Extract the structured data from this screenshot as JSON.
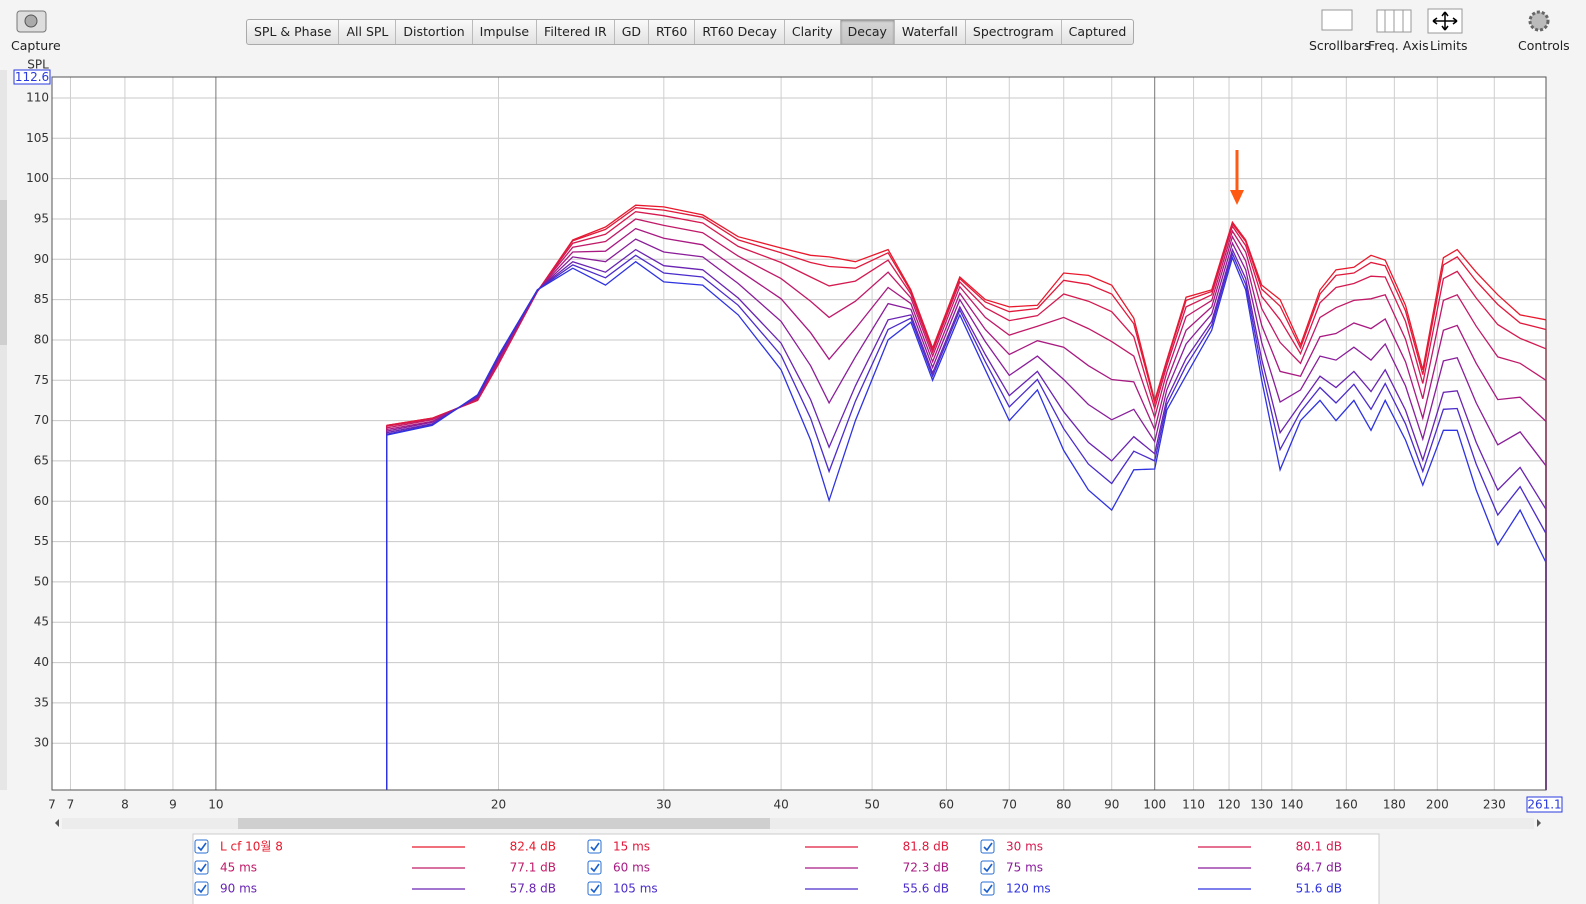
{
  "toolbar": {
    "capture": "Capture",
    "tabs": [
      "SPL & Phase",
      "All SPL",
      "Distortion",
      "Impulse",
      "Filtered IR",
      "GD",
      "RT60",
      "RT60 Decay",
      "Clarity",
      "Decay",
      "Waterfall",
      "Spectrogram",
      "Captured"
    ],
    "tools": [
      "Scrollbars",
      "Freq. Axis",
      "Limits",
      "Controls"
    ]
  },
  "chart_data": {
    "type": "line",
    "y_label": "SPL",
    "log_x": true,
    "grid": true,
    "xlim": [
      6.69,
      261.1
    ],
    "ylim": [
      24.2,
      112.6
    ],
    "xticks": [
      {
        "value": 6.69,
        "label": "7"
      },
      7,
      8,
      9,
      10,
      20,
      30,
      40,
      50,
      60,
      70,
      80,
      90,
      100,
      110,
      120,
      130,
      140,
      160,
      180,
      200,
      230
    ],
    "yticks": [
      30,
      35,
      40,
      45,
      50,
      55,
      60,
      65,
      70,
      75,
      80,
      85,
      90,
      95,
      100,
      105,
      110
    ],
    "x": [
      15.2,
      17,
      19,
      20,
      22,
      24,
      26,
      28,
      30,
      33,
      36,
      40,
      43,
      45,
      48,
      52,
      55,
      58,
      62,
      66,
      70,
      75,
      80,
      85,
      90,
      95,
      100,
      103,
      108,
      115,
      121,
      125,
      130,
      136,
      143,
      150,
      156,
      163,
      170,
      176,
      185,
      193,
      203,
      210,
      220,
      232,
      245,
      261.1
    ],
    "series": [
      {
        "name": "L cf 10월 8",
        "readout": "82.4 dB",
        "color": "#e8192c",
        "values": [
          69.4,
          70.3,
          72.5,
          77,
          86,
          92.4,
          94,
          96.7,
          96.5,
          95.5,
          92.8,
          91.4,
          90.5,
          90.3,
          89.7,
          91.2,
          86.2,
          79,
          87.8,
          85,
          84.1,
          84.3,
          88.3,
          88,
          86.8,
          82.7,
          72.5,
          77.5,
          85.3,
          86.2,
          94.6,
          92.4,
          86.8,
          85,
          79.4,
          86.2,
          88.7,
          89,
          90.5,
          89.9,
          84.3,
          76.3,
          90.2,
          91.2,
          88.4,
          85.6,
          83.1,
          82.5
        ]
      },
      {
        "name": "15 ms",
        "readout": "81.8 dB",
        "color": "#e01a3c",
        "values": [
          69.4,
          70.3,
          72.5,
          77.0,
          86.0,
          92.3,
          93.7,
          96.4,
          96.1,
          95.2,
          92.4,
          90.8,
          89.6,
          89.1,
          88.9,
          90.8,
          86.0,
          78.8,
          87.6,
          84.7,
          83.5,
          83.9,
          87.4,
          86.9,
          85.7,
          82.0,
          72.2,
          77.3,
          84.9,
          86.0,
          94.4,
          92.2,
          86.3,
          84.2,
          79.0,
          85.7,
          88.0,
          88.3,
          89.6,
          89.2,
          83.6,
          75.7,
          89.3,
          90.3,
          87.3,
          84.4,
          82.1,
          81.3
        ]
      },
      {
        "name": "30 ms",
        "readout": "80.1 dB",
        "color": "#d41a50",
        "values": [
          69.3,
          70.2,
          72.6,
          77.1,
          86.0,
          92.0,
          93.1,
          95.9,
          95.4,
          94.5,
          91.6,
          89.6,
          87.8,
          86.7,
          87.3,
          89.9,
          85.7,
          78.5,
          87.2,
          84.0,
          82.4,
          83.0,
          85.7,
          84.8,
          83.5,
          80.4,
          71.5,
          76.8,
          84.1,
          85.6,
          94.1,
          91.7,
          85.4,
          82.5,
          78.3,
          84.6,
          86.5,
          87.0,
          87.9,
          87.8,
          82.3,
          74.6,
          87.6,
          88.5,
          85.2,
          81.9,
          80.2,
          78.9
        ]
      },
      {
        "name": "45 ms",
        "readout": "77.1 dB",
        "color": "#c01a68",
        "values": [
          69.1,
          70.1,
          72.7,
          77.3,
          86.1,
          91.5,
          92.2,
          95.0,
          94.2,
          93.3,
          90.4,
          87.6,
          84.8,
          82.8,
          84.8,
          88.4,
          85.2,
          78.0,
          86.6,
          82.8,
          80.6,
          81.7,
          82.8,
          81.4,
          79.8,
          78.0,
          70.4,
          76.0,
          82.9,
          84.9,
          93.5,
          90.9,
          83.9,
          79.7,
          77.1,
          82.8,
          84.0,
          84.9,
          85.1,
          85.6,
          80.1,
          72.7,
          84.9,
          85.6,
          81.7,
          77.9,
          77.1,
          75.0
        ]
      },
      {
        "name": "60 ms",
        "readout": "72.3 dB",
        "color": "#a81a82",
        "values": [
          68.9,
          69.9,
          72.8,
          77.5,
          86.1,
          90.9,
          91.0,
          93.8,
          92.6,
          91.8,
          88.7,
          85.1,
          80.9,
          77.6,
          81.4,
          86.5,
          84.5,
          77.3,
          85.8,
          81.3,
          78.2,
          79.9,
          79.1,
          76.8,
          75.1,
          74.8,
          68.9,
          74.9,
          81.2,
          84.1,
          92.8,
          89.8,
          81.8,
          76.1,
          75.5,
          80.4,
          80.8,
          82.1,
          81.4,
          82.6,
          77.3,
          70.3,
          81.2,
          81.8,
          77.1,
          72.6,
          72.9,
          69.9
        ]
      },
      {
        "name": "75 ms",
        "readout": "64.7 dB",
        "color": "#8a1e9a",
        "values": [
          68.7,
          69.8,
          72.9,
          77.7,
          86.1,
          90.3,
          89.7,
          92.5,
          90.9,
          90.3,
          87.0,
          82.3,
          76.8,
          72.2,
          77.9,
          84.5,
          83.8,
          76.6,
          85.0,
          79.8,
          75.6,
          78.0,
          75.1,
          72.0,
          70.1,
          71.4,
          67.4,
          73.8,
          79.5,
          83.2,
          92.0,
          88.7,
          79.7,
          72.3,
          73.8,
          78.0,
          77.5,
          79.1,
          77.5,
          79.5,
          74.3,
          67.7,
          77.4,
          77.8,
          72.2,
          67.0,
          68.6,
          64.4
        ]
      },
      {
        "name": "90 ms",
        "readout": "57.8 dB",
        "color": "#6a24b2",
        "values": [
          68.5,
          69.6,
          73.0,
          77.9,
          86.2,
          89.7,
          88.4,
          91.2,
          89.2,
          88.7,
          85.2,
          79.6,
          72.6,
          66.7,
          74.3,
          82.5,
          83.1,
          75.9,
          84.1,
          78.2,
          73.1,
          76.1,
          71.1,
          67.3,
          65.0,
          68.0,
          65.9,
          72.7,
          77.7,
          82.3,
          91.2,
          87.6,
          77.6,
          68.5,
          72.1,
          75.5,
          74.1,
          76.1,
          73.6,
          76.3,
          71.3,
          65.1,
          73.5,
          73.7,
          67.3,
          61.4,
          64.2,
          59.0
        ]
      },
      {
        "name": "105 ms",
        "readout": "55.6 dB",
        "color": "#4c2cca",
        "values": [
          68.3,
          69.5,
          73.1,
          78.0,
          86.2,
          89.3,
          87.7,
          90.5,
          88.3,
          87.8,
          84.3,
          78.1,
          70.3,
          63.7,
          72.4,
          81.3,
          82.7,
          75.5,
          83.7,
          77.3,
          71.7,
          75.1,
          69.0,
          64.6,
          62.2,
          66.2,
          65.0,
          72.0,
          76.8,
          81.8,
          90.7,
          86.9,
          76.4,
          66.4,
          71.1,
          74.1,
          72.2,
          74.5,
          71.4,
          74.6,
          69.6,
          63.7,
          71.4,
          71.5,
          64.6,
          58.3,
          61.8,
          56.0
        ]
      },
      {
        "name": "120 ms",
        "readout": "51.6 dB",
        "color": "#2f33e0",
        "values": [
          68.2,
          69.4,
          73.2,
          78.1,
          86.2,
          88.9,
          86.8,
          89.7,
          87.2,
          86.8,
          83.1,
          76.3,
          67.6,
          60.1,
          70,
          80,
          82.2,
          75,
          83.1,
          76.3,
          70,
          73.8,
          66.3,
          61.4,
          58.9,
          63.9,
          64,
          71.3,
          75.6,
          81.2,
          90.2,
          86.2,
          75,
          63.9,
          70,
          72.5,
          70,
          72.5,
          68.8,
          72.5,
          67.6,
          62,
          68.8,
          68.8,
          61.4,
          54.6,
          58.9,
          52.4
        ]
      }
    ]
  }
}
